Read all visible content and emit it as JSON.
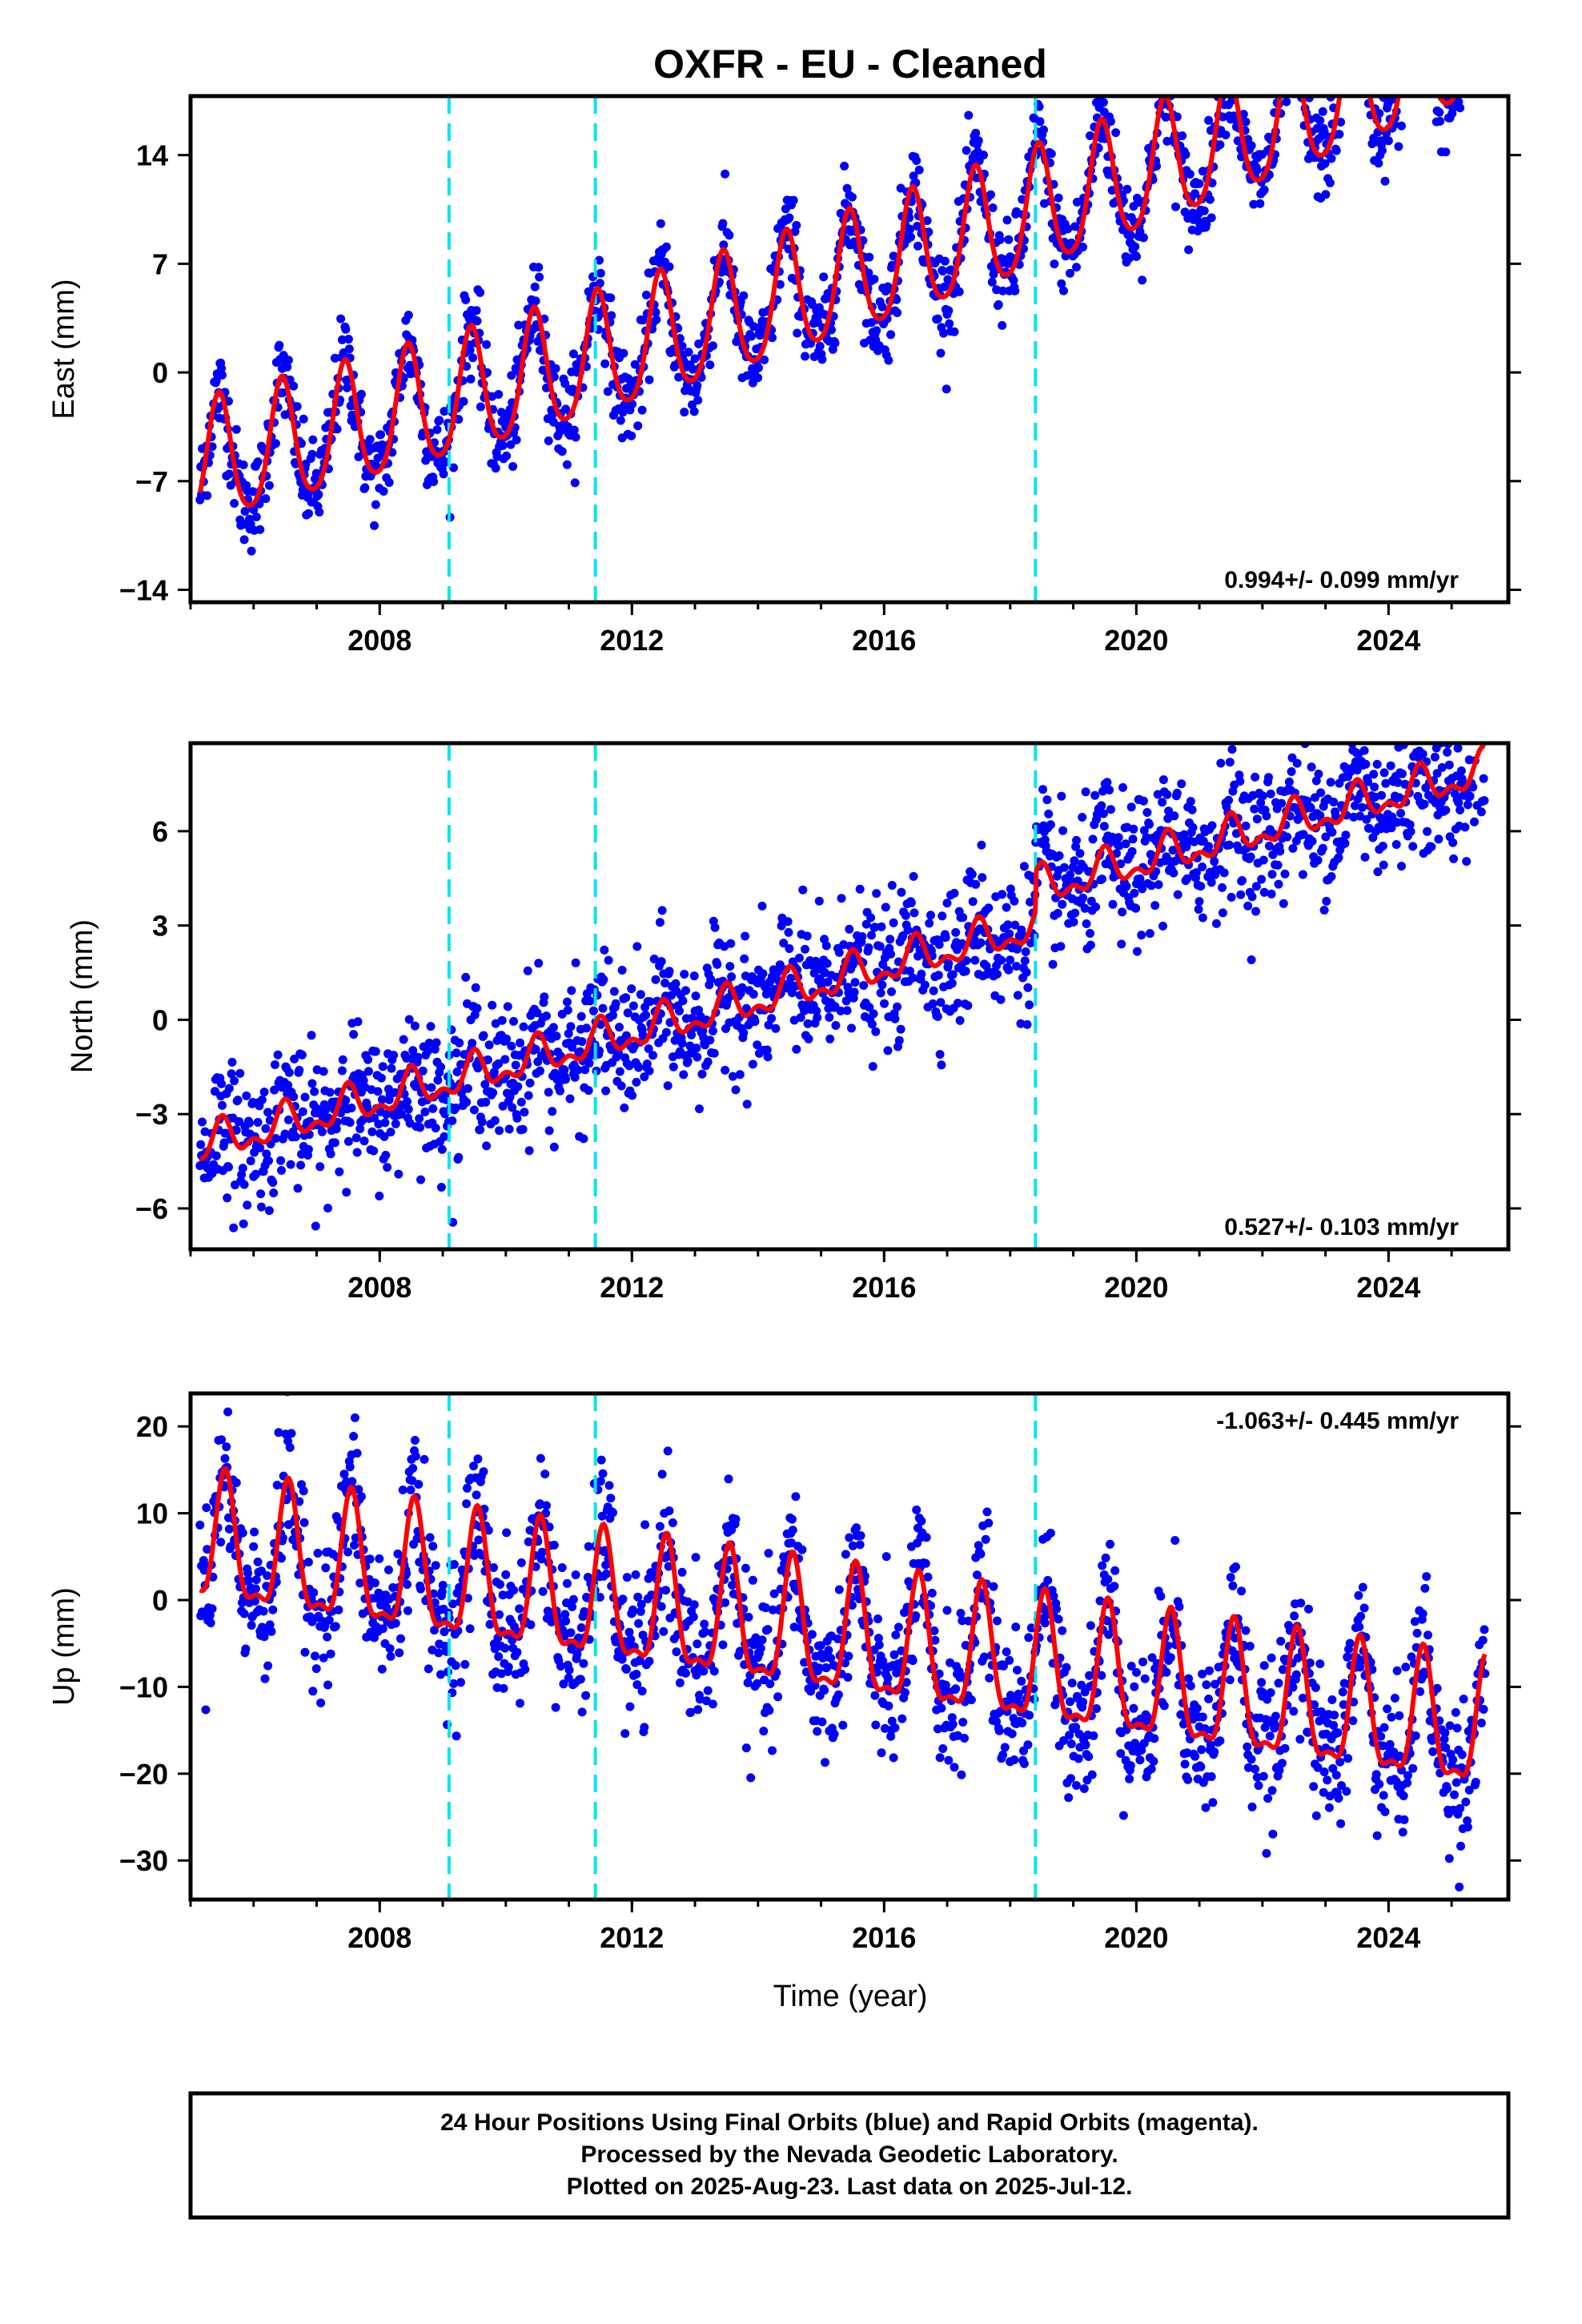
{
  "title": "OXFR  - EU - Cleaned",
  "colors": {
    "final_orbits": "#0000ff",
    "model": "#ff0000",
    "offsets": "#00e5ee"
  },
  "footer": {
    "line1": "24 Hour Positions Using Final Orbits (blue) and Rapid Orbits (magenta).",
    "line2": "Processed by the Nevada Geodetic Laboratory.",
    "line3": "Plotted on 2025-Aug-23. Last data on 2025-Jul-12."
  },
  "chart_data": [
    {
      "type": "scatter",
      "title": "OXFR  - EU - Cleaned",
      "ylabel": "East (mm)",
      "xlabel": "",
      "xlim": [
        2005.0,
        2025.9
      ],
      "ylim": [
        -14.8,
        17.8
      ],
      "xticks": [
        2008,
        2012,
        2016,
        2020,
        2024
      ],
      "yticks": [
        -14,
        -7,
        0,
        7,
        14
      ],
      "grid": false,
      "rate_label": "0.994+/- 0.099 mm/yr",
      "offset_lines": [
        2009.1,
        2011.42,
        2018.4
      ],
      "model": {
        "t0": 2005.2,
        "y0": -6.0,
        "trend": 0.994,
        "amp": 3.9,
        "amp2": 0.6,
        "phase_peak": 0.45,
        "accel": 0.018
      },
      "scatter_points": {
        "start": 2005.15,
        "end": 2025.53,
        "count": 1800,
        "sigma": 1.5
      },
      "x_unit": "decimal year"
    },
    {
      "type": "scatter",
      "ylabel": "North (mm)",
      "xlabel": "",
      "xlim": [
        2005.0,
        2025.9
      ],
      "ylim": [
        -7.3,
        8.8
      ],
      "xticks": [
        2008,
        2012,
        2016,
        2020,
        2024
      ],
      "yticks": [
        -6,
        -3,
        0,
        3,
        6
      ],
      "grid": false,
      "rate_label": "0.527+/- 0.103 mm/yr",
      "offset_lines": [
        2009.1,
        2011.42,
        2018.4
      ],
      "model": {
        "t0": 2005.2,
        "y0": -4.0,
        "trend": 0.527,
        "amp": 0.5,
        "amp2": 0.3,
        "phase_peak": 0.5,
        "accel": 0.0,
        "step_2018": 1.2
      },
      "scatter_points": {
        "start": 2005.15,
        "end": 2025.53,
        "count": 1800,
        "sigma": 1.1
      },
      "x_unit": "decimal year"
    },
    {
      "type": "scatter",
      "ylabel": "Up (mm)",
      "xlabel": "Time (year)",
      "xlim": [
        2005.0,
        2025.9
      ],
      "ylim": [
        -34.5,
        23.8
      ],
      "xticks": [
        2008,
        2012,
        2016,
        2020,
        2024
      ],
      "yticks": [
        -30,
        -20,
        -10,
        0,
        10,
        20
      ],
      "grid": false,
      "rate_label": "-1.063+/- 0.445 mm/yr",
      "offset_lines": [
        2009.1,
        2011.42,
        2018.4
      ],
      "model": {
        "t0": 2005.2,
        "y0": 6.0,
        "trend": -1.063,
        "amp": 7.0,
        "amp2": 2.5,
        "phase_peak": 0.55,
        "accel": 0.0
      },
      "scatter_points": {
        "start": 2005.15,
        "end": 2025.53,
        "count": 1800,
        "sigma": 4.2
      },
      "x_unit": "decimal year"
    }
  ]
}
